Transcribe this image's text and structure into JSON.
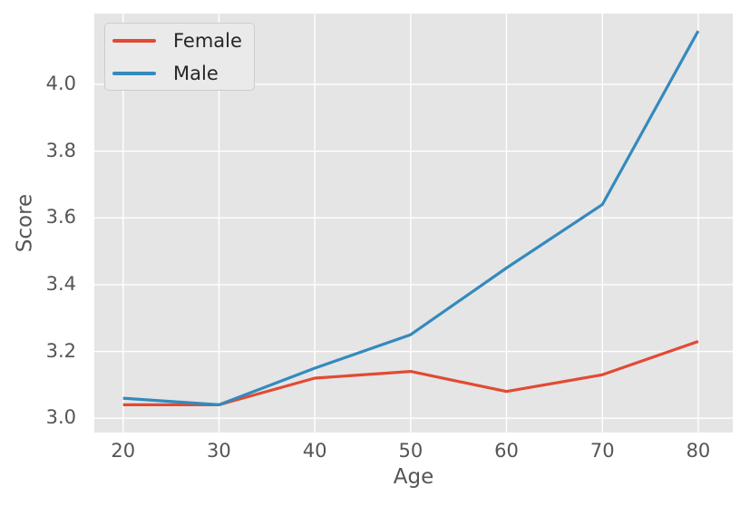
{
  "chart_data": {
    "type": "line",
    "title": "",
    "xlabel": "Age",
    "ylabel": "Score",
    "x": [
      20,
      30,
      40,
      50,
      60,
      70,
      80
    ],
    "series": [
      {
        "name": "Female",
        "color": "#e24a33",
        "values": [
          3.04,
          3.04,
          3.12,
          3.14,
          3.08,
          3.13,
          3.23
        ]
      },
      {
        "name": "Male",
        "color": "#348abd",
        "values": [
          3.06,
          3.04,
          3.15,
          3.25,
          3.45,
          3.64,
          4.16
        ]
      }
    ],
    "xticks": [
      20,
      30,
      40,
      50,
      60,
      70,
      80
    ],
    "xtick_labels": [
      "20",
      "30",
      "40",
      "50",
      "60",
      "70",
      "80"
    ],
    "yticks": [
      3.0,
      3.2,
      3.4,
      3.6,
      3.8,
      4.0
    ],
    "ytick_labels": [
      "3.0",
      "3.2",
      "3.4",
      "3.6",
      "3.8",
      "4.0"
    ],
    "xlim": [
      17.0,
      83.6
    ],
    "ylim": [
      2.957,
      4.212
    ],
    "grid": true,
    "legend_position": "upper left",
    "line_width": 3.2,
    "colors": {
      "figure_background": "#ffffff",
      "axes_background": "#e5e5e5",
      "grid": "#ffffff",
      "tick_label": "#555555",
      "axis_label": "#555555",
      "legend_text": "#262626",
      "legend_background": "#eaeaea",
      "legend_border": "#cccccc"
    }
  }
}
